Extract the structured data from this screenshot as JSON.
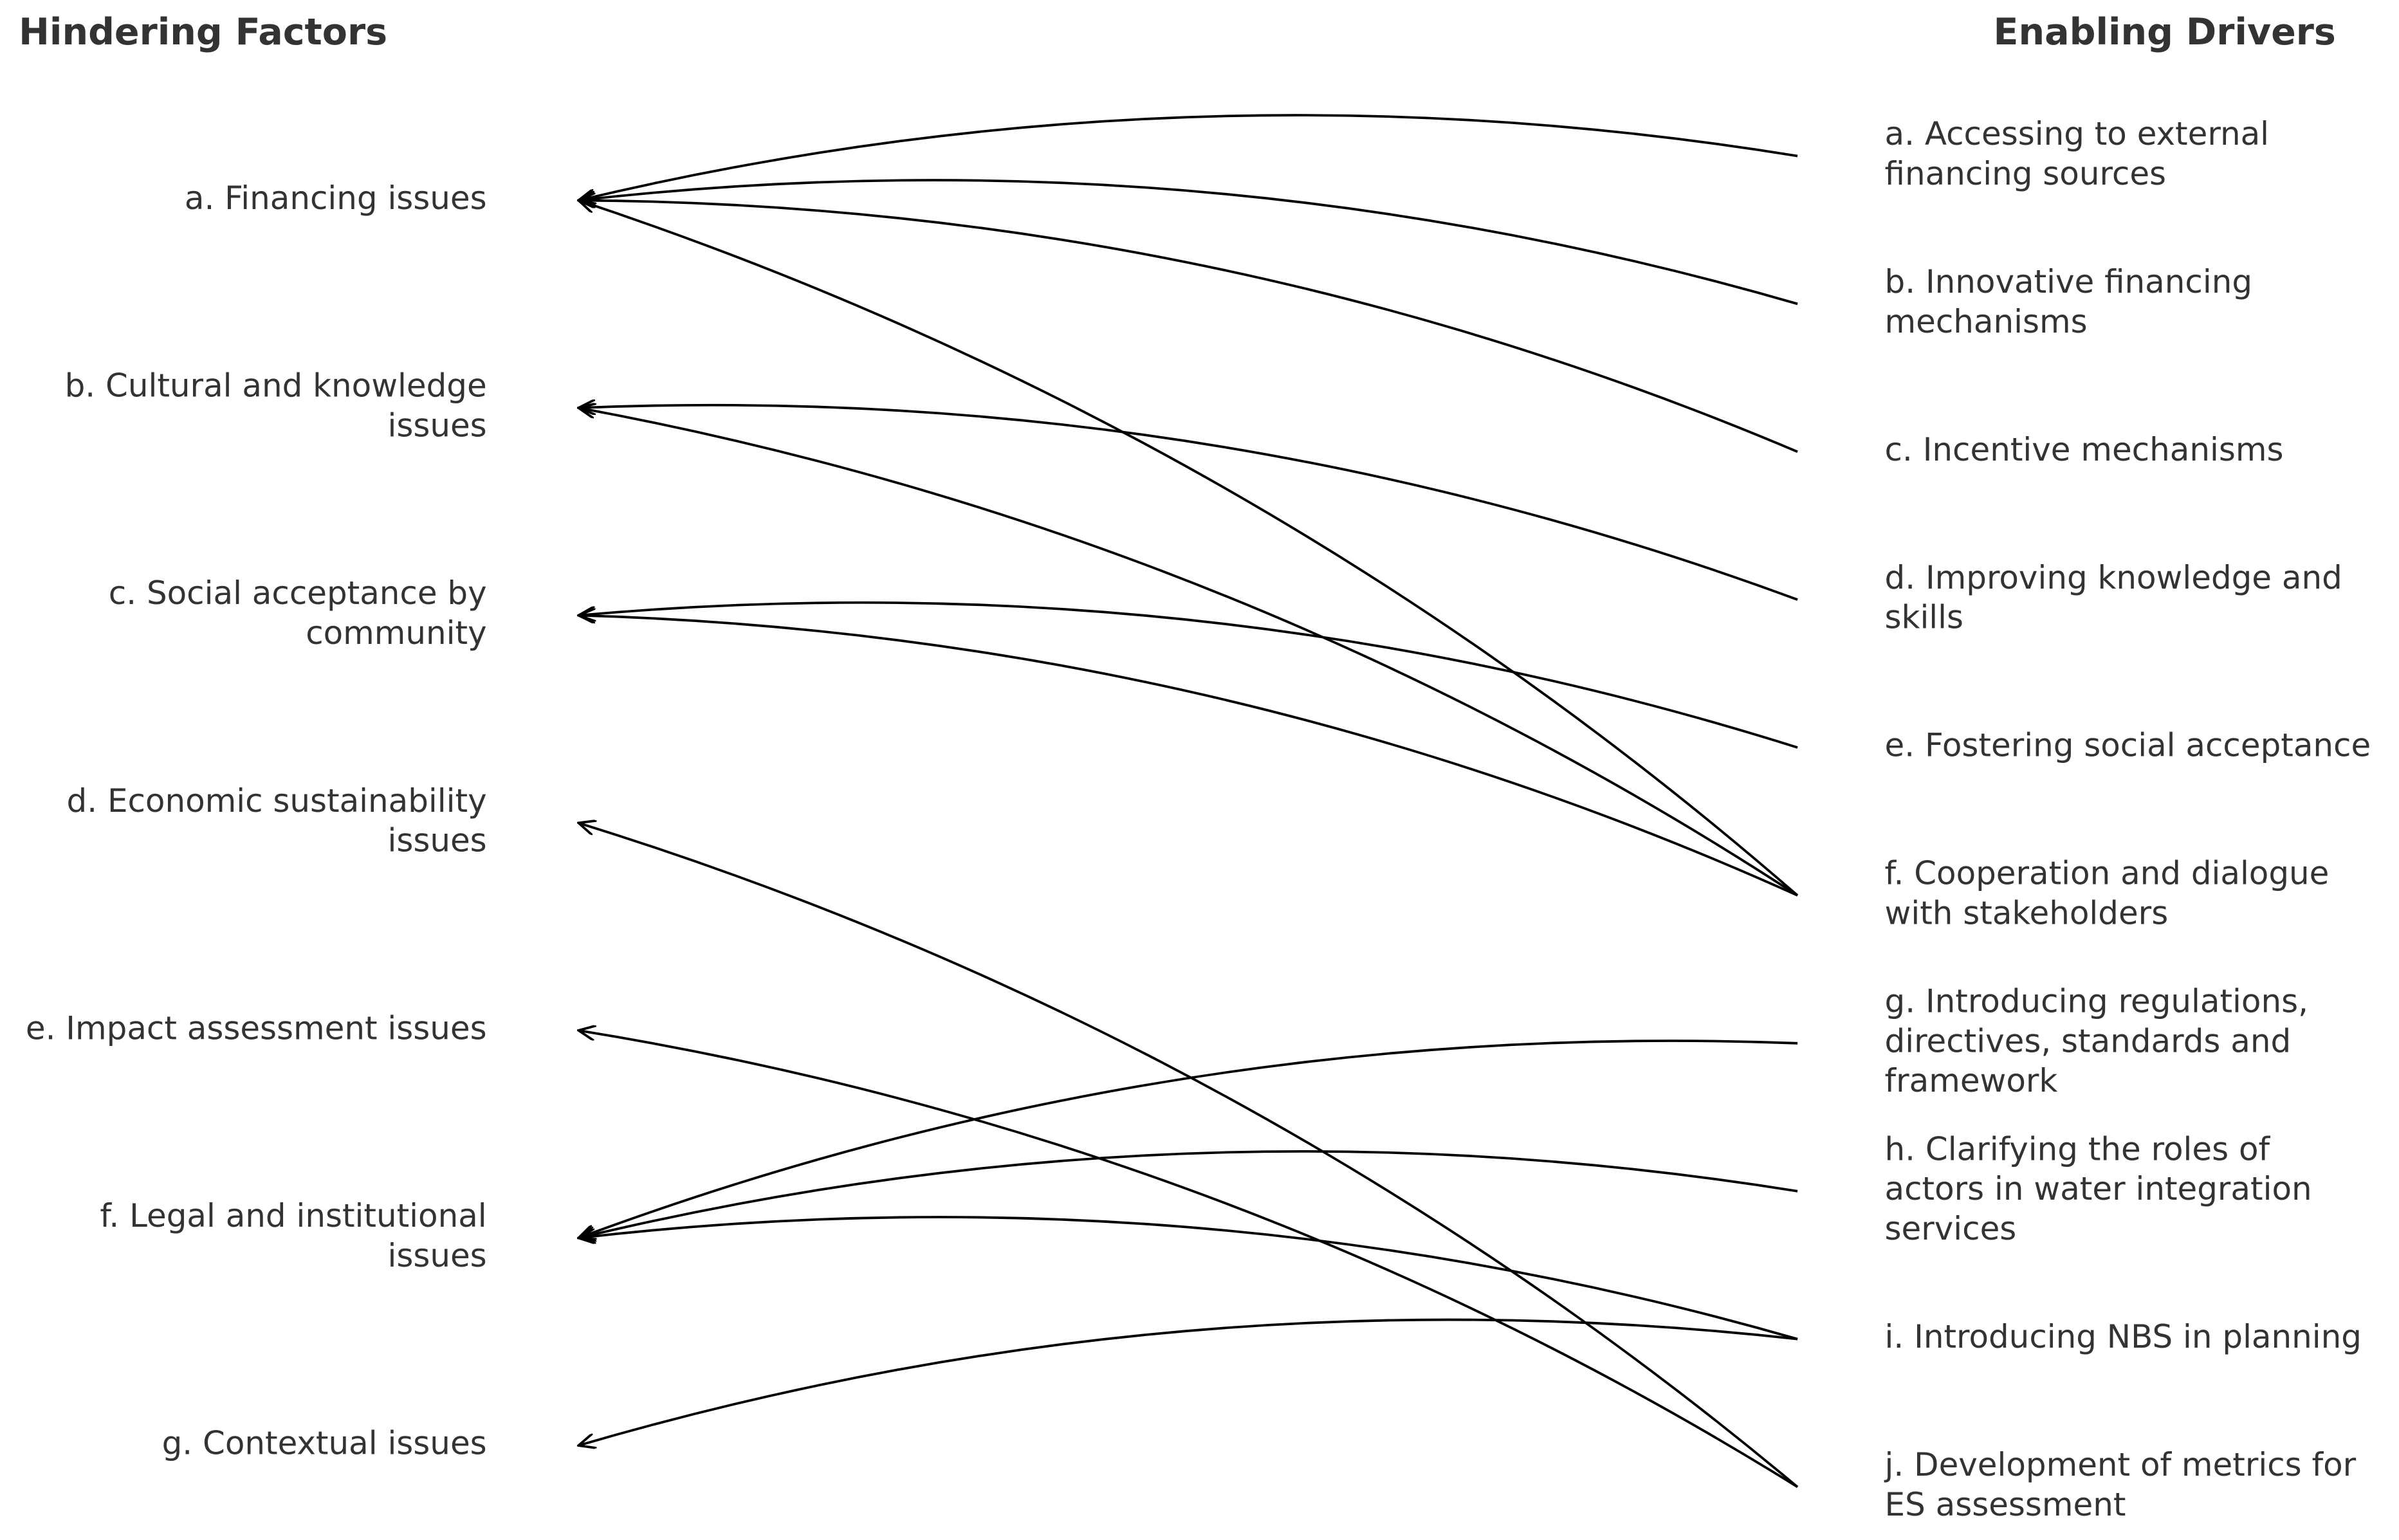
{
  "left_title": "Hindering Factors",
  "right_title": "Enabling Drivers",
  "factors": [
    {
      "label": [
        "a. Financing issues"
      ]
    },
    {
      "label": [
        "b. Cultural and knowledge",
        "issues"
      ]
    },
    {
      "label": [
        "c. Social acceptance by",
        "community"
      ]
    },
    {
      "label": [
        "d. Economic sustainability",
        "issues"
      ]
    },
    {
      "label": [
        "e. Impact assessment issues"
      ]
    },
    {
      "label": [
        "f. Legal and institutional",
        "issues"
      ]
    },
    {
      "label": [
        "g. Contextual issues"
      ]
    }
  ],
  "drivers": [
    {
      "label": [
        "a. Accessing to external",
        "financing sources"
      ]
    },
    {
      "label": [
        "b. Innovative financing",
        "mechanisms"
      ]
    },
    {
      "label": [
        "c. Incentive mechanisms"
      ]
    },
    {
      "label": [
        "d. Improving knowledge and",
        "skills"
      ]
    },
    {
      "label": [
        "e. Fostering social acceptance"
      ]
    },
    {
      "label": [
        "f. Cooperation and dialogue",
        "with stakeholders"
      ]
    },
    {
      "label": [
        "g. Introducing regulations,",
        "directives, standards and",
        "framework"
      ]
    },
    {
      "label": [
        "h. Clarifying the roles of",
        "actors in water integration",
        "services"
      ]
    },
    {
      "label": [
        "i. Introducing NBS in planning"
      ]
    },
    {
      "label": [
        "j. Development of metrics for",
        "ES assessment"
      ]
    }
  ],
  "links": [
    {
      "driver": 0,
      "factor": 0
    },
    {
      "driver": 1,
      "factor": 0
    },
    {
      "driver": 2,
      "factor": 0
    },
    {
      "driver": 5,
      "factor": 0
    },
    {
      "driver": 3,
      "factor": 1
    },
    {
      "driver": 5,
      "factor": 1
    },
    {
      "driver": 4,
      "factor": 2
    },
    {
      "driver": 5,
      "factor": 2
    },
    {
      "driver": 9,
      "factor": 3
    },
    {
      "driver": 9,
      "factor": 4
    },
    {
      "driver": 6,
      "factor": 5
    },
    {
      "driver": 7,
      "factor": 5
    },
    {
      "driver": 8,
      "factor": 5
    },
    {
      "driver": 8,
      "factor": 6
    }
  ]
}
